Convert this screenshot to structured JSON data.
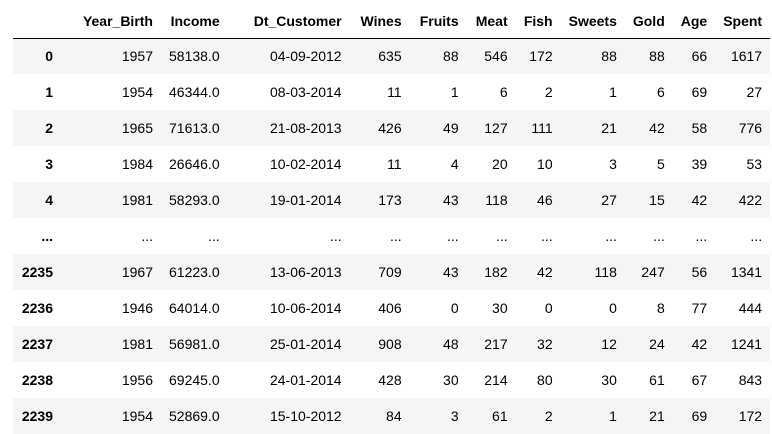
{
  "table": {
    "columns": [
      "",
      "Year_Birth",
      "Income",
      "Dt_Customer",
      "Wines",
      "Fruits",
      "Meat",
      "Fish",
      "Sweets",
      "Gold",
      "Age",
      "Spent"
    ],
    "rows": [
      {
        "index": "0",
        "cells": [
          "1957",
          "58138.0",
          "04-09-2012",
          "635",
          "88",
          "546",
          "172",
          "88",
          "88",
          "66",
          "1617"
        ]
      },
      {
        "index": "1",
        "cells": [
          "1954",
          "46344.0",
          "08-03-2014",
          "11",
          "1",
          "6",
          "2",
          "1",
          "6",
          "69",
          "27"
        ]
      },
      {
        "index": "2",
        "cells": [
          "1965",
          "71613.0",
          "21-08-2013",
          "426",
          "49",
          "127",
          "111",
          "21",
          "42",
          "58",
          "776"
        ]
      },
      {
        "index": "3",
        "cells": [
          "1984",
          "26646.0",
          "10-02-2014",
          "11",
          "4",
          "20",
          "10",
          "3",
          "5",
          "39",
          "53"
        ]
      },
      {
        "index": "4",
        "cells": [
          "1981",
          "58293.0",
          "19-01-2014",
          "173",
          "43",
          "118",
          "46",
          "27",
          "15",
          "42",
          "422"
        ]
      },
      {
        "index": "...",
        "cells": [
          "...",
          "...",
          "...",
          "...",
          "...",
          "...",
          "...",
          "...",
          "...",
          "...",
          "..."
        ]
      },
      {
        "index": "2235",
        "cells": [
          "1967",
          "61223.0",
          "13-06-2013",
          "709",
          "43",
          "182",
          "42",
          "118",
          "247",
          "56",
          "1341"
        ]
      },
      {
        "index": "2236",
        "cells": [
          "1946",
          "64014.0",
          "10-06-2014",
          "406",
          "0",
          "30",
          "0",
          "0",
          "8",
          "77",
          "444"
        ]
      },
      {
        "index": "2237",
        "cells": [
          "1981",
          "56981.0",
          "25-01-2014",
          "908",
          "48",
          "217",
          "32",
          "12",
          "24",
          "42",
          "1241"
        ]
      },
      {
        "index": "2238",
        "cells": [
          "1956",
          "69245.0",
          "24-01-2014",
          "428",
          "30",
          "214",
          "80",
          "30",
          "61",
          "67",
          "843"
        ]
      },
      {
        "index": "2239",
        "cells": [
          "1954",
          "52869.0",
          "15-10-2012",
          "84",
          "3",
          "61",
          "2",
          "1",
          "21",
          "69",
          "172"
        ]
      }
    ]
  }
}
